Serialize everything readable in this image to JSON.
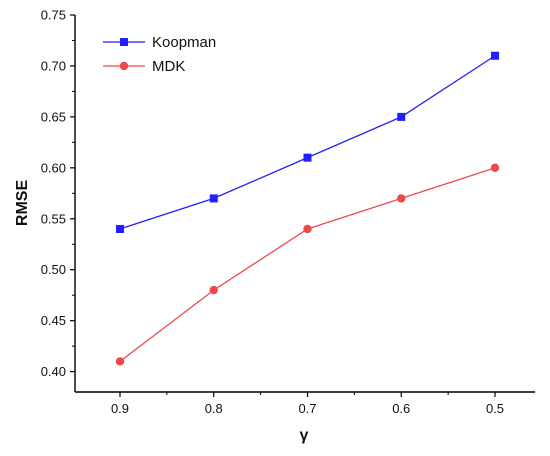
{
  "chart_data": {
    "type": "line",
    "title": "",
    "xlabel": "γ",
    "ylabel": "RMSE",
    "categories": [
      "0.9",
      "0.8",
      "0.7",
      "0.6",
      "0.5"
    ],
    "ylim": [
      0.38,
      0.75
    ],
    "y_ticks": [
      "0.40",
      "0.45",
      "0.50",
      "0.55",
      "0.60",
      "0.65",
      "0.70",
      "0.75"
    ],
    "grid": false,
    "legend_position": "top-left",
    "series": [
      {
        "name": "Koopman",
        "color": "#1f1fff",
        "marker": "square",
        "values": [
          0.54,
          0.57,
          0.61,
          0.65,
          0.71
        ]
      },
      {
        "name": "MDK",
        "color": "#f04848",
        "marker": "circle",
        "values": [
          0.41,
          0.48,
          0.54,
          0.57,
          0.6
        ]
      }
    ]
  }
}
